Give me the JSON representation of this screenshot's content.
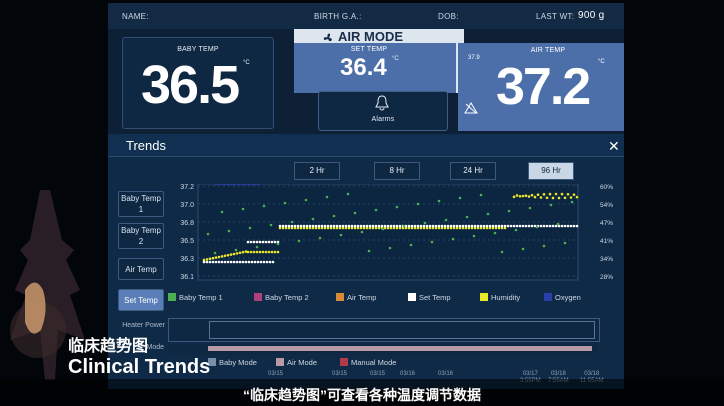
{
  "header": {
    "name_label": "NAME:",
    "birth_label": "BIRTH G.A.:",
    "dob_label": "DOB:",
    "last_wt_label": "LAST WT:",
    "last_wt_value": "900 g"
  },
  "baby_temp": {
    "label": "BABY TEMP",
    "value": "36.5",
    "unit": "°C"
  },
  "air_mode": {
    "title": "AIR MODE",
    "set_temp_label": "SET TEMP",
    "set_temp_value": "36.4",
    "set_temp_unit": "°C",
    "air_temp_label": "AIR TEMP",
    "air_temp_value": "37.2",
    "air_temp_unit": "°C",
    "small_value": "37.9"
  },
  "alarms": {
    "label": "Alarms"
  },
  "trends": {
    "title": "Trends",
    "tabs": [
      "2 Hr",
      "8 Hr",
      "24 Hr",
      "96 Hr"
    ],
    "selected_tab": "96 Hr",
    "side_buttons": [
      "Baby Temp 1",
      "Baby Temp 2",
      "Air Temp",
      "Set Temp"
    ],
    "selected_side": "Set Temp",
    "y_ticks": [
      "37.2",
      "37.0",
      "36.8",
      "36.5",
      "36.3",
      "36.1"
    ],
    "y2_ticks": [
      "60%",
      "54%",
      "47%",
      "41%",
      "34%",
      "28%"
    ],
    "legend": [
      {
        "label": "Baby Temp 1",
        "color": "#4caf50"
      },
      {
        "label": "Baby Temp 2",
        "color": "#b0407a"
      },
      {
        "label": "Air Temp",
        "color": "#d98a36"
      },
      {
        "label": "Set Temp",
        "color": "#ffffff"
      },
      {
        "label": "Humidity",
        "color": "#e9e92a"
      },
      {
        "label": "Oxygen",
        "color": "#2b3fa8"
      }
    ],
    "heater_label": "Heater Power",
    "mode_label": "Mode",
    "mode_legend": [
      {
        "label": "Baby Mode",
        "color": "#7a8ea6"
      },
      {
        "label": "Air Mode",
        "color": "#b69aa6"
      },
      {
        "label": "Manual Mode",
        "color": "#b33a48"
      }
    ],
    "x_dates": [
      "03/15",
      "03/15",
      "03/15",
      "03/16",
      "03/16",
      "03/17",
      "03/18",
      "03/18"
    ],
    "x_times": [
      "",
      "",
      "",
      "",
      "",
      "3:55PM",
      "7:55AM",
      "11:55AM"
    ]
  },
  "overlay": {
    "cn_title": "临床趋势图",
    "en_title": "Clinical Trends",
    "subtitle": "“临床趋势图”可查看各种温度调节数据"
  }
}
